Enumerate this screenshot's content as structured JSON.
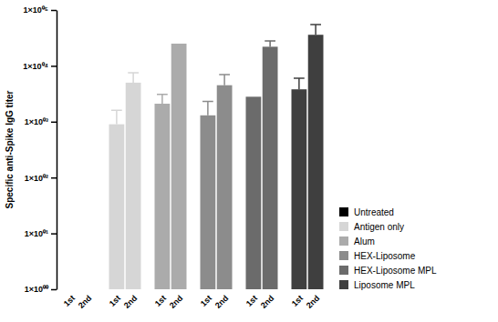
{
  "chart_data": {
    "type": "bar",
    "y_label": "Specific anti-Spike IgG titer",
    "categories": [
      "1st",
      "2nd",
      "1st",
      "2nd",
      "1st",
      "2nd",
      "1st",
      "2nd",
      "1st",
      "2nd",
      "1st",
      "2nd"
    ],
    "log": "y",
    "ylim": [
      1,
      100000
    ],
    "yticks": [
      {
        "value": 1,
        "label": "1×10⁰⁰"
      },
      {
        "value": 10,
        "label": "1×10⁰¹"
      },
      {
        "value": 100,
        "label": "1×10⁰²"
      },
      {
        "value": 1000,
        "label": "1×10⁰³"
      },
      {
        "value": 10000,
        "label": "1×10⁰⁴"
      },
      {
        "value": 100000,
        "label": "1×10⁰⁵"
      }
    ],
    "legend": "right",
    "series": [
      {
        "name": "Untreated",
        "color": "#000000",
        "values": [
          null,
          null,
          null,
          null,
          null,
          null,
          null,
          null,
          null,
          null,
          null,
          null
        ],
        "errors": [
          null,
          null,
          null,
          null,
          null,
          null,
          null,
          null,
          null,
          null,
          null,
          null
        ]
      },
      {
        "name": "Antigen only",
        "color": "#d6d6d6",
        "values": [
          null,
          null,
          900,
          5000,
          null,
          null,
          null,
          null,
          null,
          null,
          null,
          null
        ],
        "errors": [
          null,
          null,
          700,
          2500,
          null,
          null,
          null,
          null,
          null,
          null,
          null,
          null
        ]
      },
      {
        "name": "Alum",
        "color": "#ababab",
        "values": [
          null,
          null,
          null,
          null,
          2100,
          25000,
          null,
          null,
          null,
          null,
          null,
          null
        ],
        "errors": [
          null,
          null,
          null,
          null,
          1000,
          null,
          null,
          null,
          null,
          null,
          null,
          null
        ]
      },
      {
        "name": "HEX-Liposome",
        "color": "#8c8c8c",
        "values": [
          null,
          null,
          null,
          null,
          null,
          null,
          1300,
          4500,
          null,
          null,
          null,
          null
        ],
        "errors": [
          null,
          null,
          null,
          null,
          null,
          null,
          1000,
          2500,
          null,
          null,
          null,
          null
        ]
      },
      {
        "name": "HEX-Liposome MPL",
        "color": "#6b6b6b",
        "values": [
          null,
          null,
          null,
          null,
          null,
          null,
          null,
          null,
          2800,
          22000,
          null,
          null
        ],
        "errors": [
          null,
          null,
          null,
          null,
          null,
          null,
          null,
          null,
          null,
          6000,
          null,
          null
        ]
      },
      {
        "name": "Liposome MPL",
        "color": "#3f3f3f",
        "values": [
          null,
          null,
          null,
          null,
          null,
          null,
          null,
          null,
          null,
          null,
          3800,
          36000
        ],
        "errors": [
          null,
          null,
          null,
          null,
          null,
          null,
          null,
          null,
          null,
          null,
          2200,
          19000
        ]
      }
    ]
  }
}
